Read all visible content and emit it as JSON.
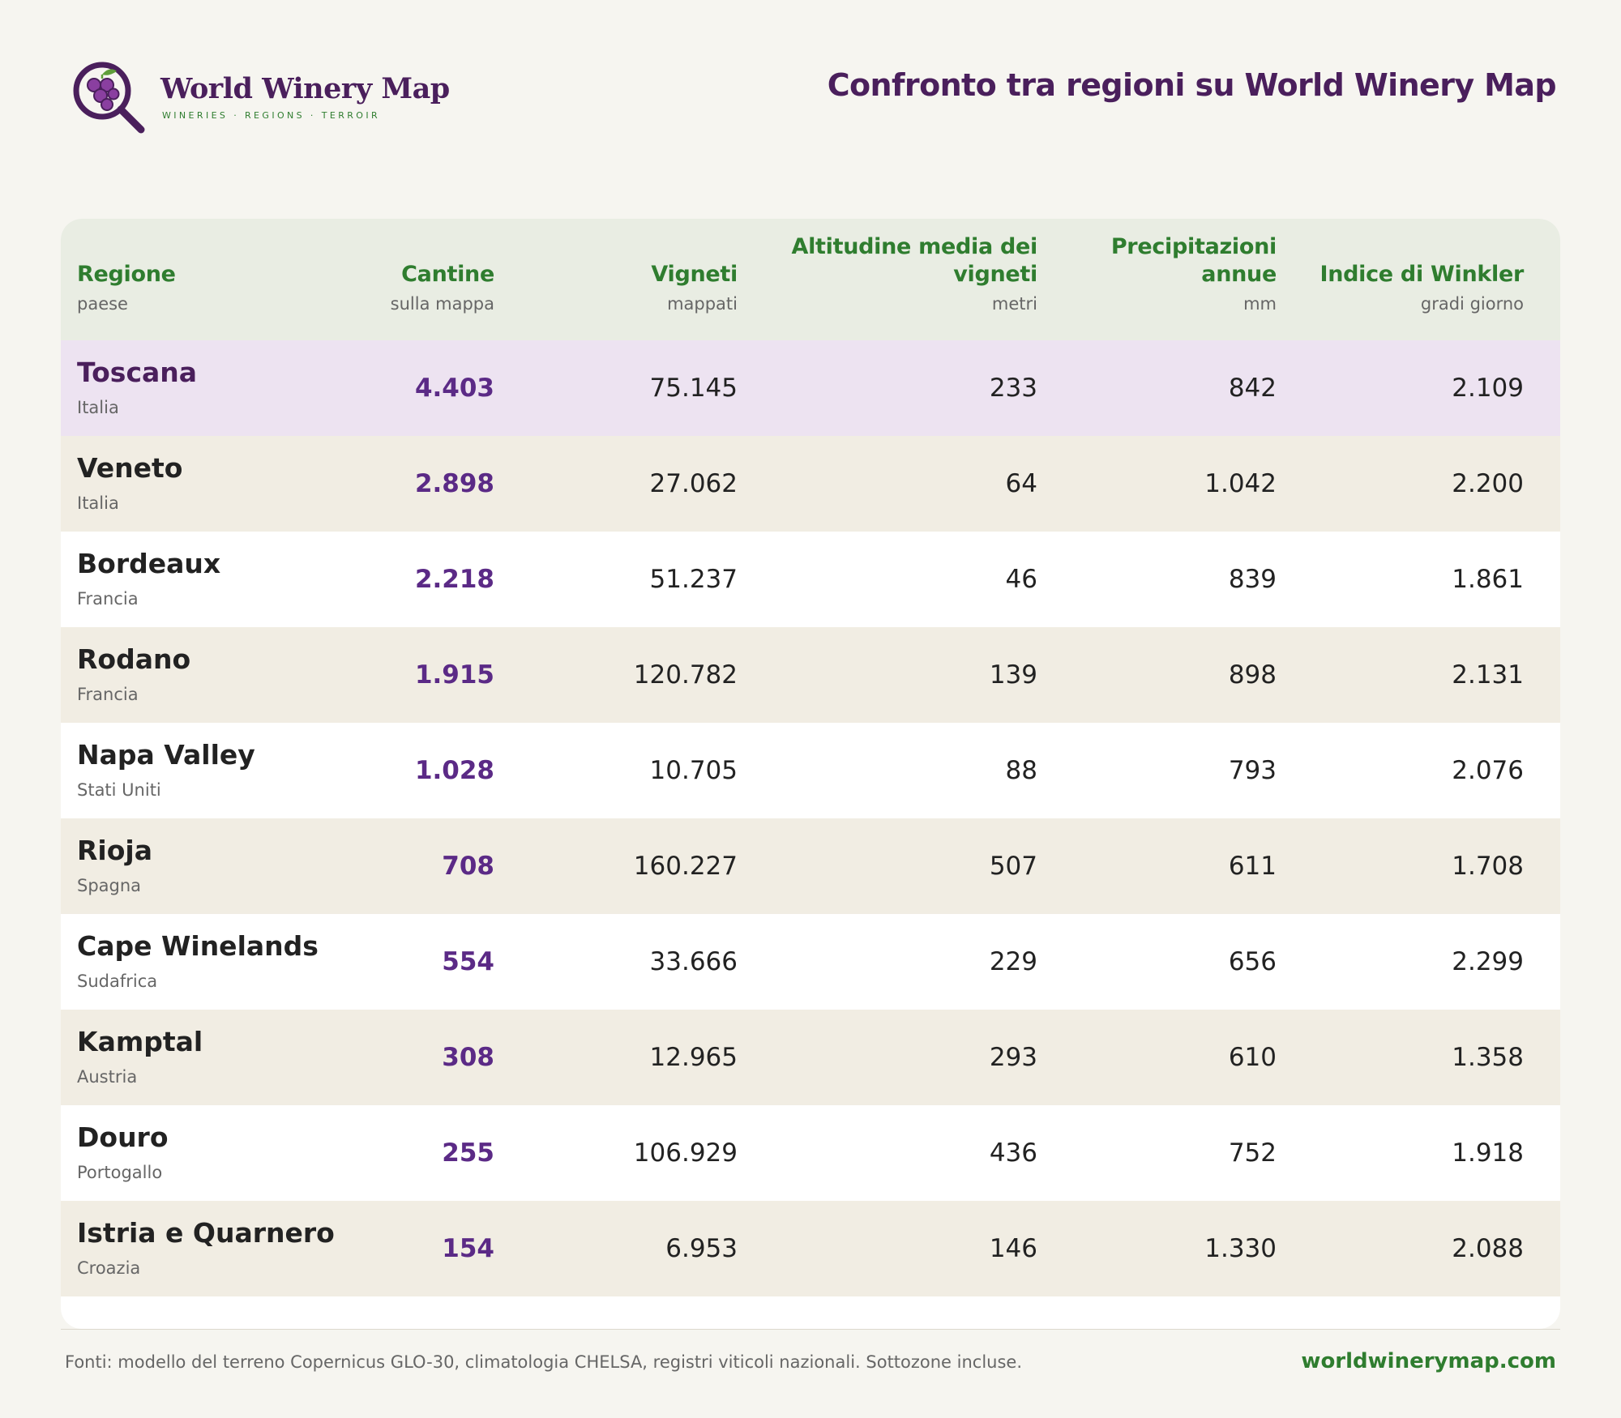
{
  "brand": {
    "name": "World Winery Map",
    "tagline": "WINERIES · REGIONS · TERROIR",
    "logo_icon": "grape-magnifier-icon"
  },
  "title": "Confronto tra regioni su World Winery Map",
  "table": {
    "columns": [
      {
        "label": "Regione",
        "sub": "paese"
      },
      {
        "label": "Cantine",
        "sub": "sulla mappa"
      },
      {
        "label": "Vigneti",
        "sub": "mappati"
      },
      {
        "label": "Altitudine media dei vigneti",
        "sub": "metri"
      },
      {
        "label": "Precipitazioni annue",
        "sub": "mm"
      },
      {
        "label": "Indice di Winkler",
        "sub": "gradi giorno"
      }
    ],
    "rows": [
      {
        "region": "Toscana",
        "country": "Italia",
        "wineries": "4.403",
        "vineyards": "75.145",
        "altitude": "233",
        "precip": "842",
        "winkler": "2.109"
      },
      {
        "region": "Veneto",
        "country": "Italia",
        "wineries": "2.898",
        "vineyards": "27.062",
        "altitude": "64",
        "precip": "1.042",
        "winkler": "2.200"
      },
      {
        "region": "Bordeaux",
        "country": "Francia",
        "wineries": "2.218",
        "vineyards": "51.237",
        "altitude": "46",
        "precip": "839",
        "winkler": "1.861"
      },
      {
        "region": "Rodano",
        "country": "Francia",
        "wineries": "1.915",
        "vineyards": "120.782",
        "altitude": "139",
        "precip": "898",
        "winkler": "2.131"
      },
      {
        "region": "Napa Valley",
        "country": "Stati Uniti",
        "wineries": "1.028",
        "vineyards": "10.705",
        "altitude": "88",
        "precip": "793",
        "winkler": "2.076"
      },
      {
        "region": "Rioja",
        "country": "Spagna",
        "wineries": "708",
        "vineyards": "160.227",
        "altitude": "507",
        "precip": "611",
        "winkler": "1.708"
      },
      {
        "region": "Cape Winelands",
        "country": "Sudafrica",
        "wineries": "554",
        "vineyards": "33.666",
        "altitude": "229",
        "precip": "656",
        "winkler": "2.299"
      },
      {
        "region": "Kamptal",
        "country": "Austria",
        "wineries": "308",
        "vineyards": "12.965",
        "altitude": "293",
        "precip": "610",
        "winkler": "1.358"
      },
      {
        "region": "Douro",
        "country": "Portogallo",
        "wineries": "255",
        "vineyards": "106.929",
        "altitude": "436",
        "precip": "752",
        "winkler": "1.918"
      },
      {
        "region": "Istria e Quarnero",
        "country": "Croazia",
        "wineries": "154",
        "vineyards": "6.953",
        "altitude": "146",
        "precip": "1.330",
        "winkler": "2.088"
      }
    ]
  },
  "footer": {
    "note": "Fonti: modello del terreno Copernicus GLO-30, climatologia CHELSA, registri viticoli nazionali. Sottozone incluse.",
    "url": "worldwinerymap.com"
  },
  "colors": {
    "brand_purple": "#4a1f5c",
    "accent_green": "#2f7d2f",
    "winery_purple": "#5b2a86",
    "highlight_row": "#ede3f1"
  }
}
